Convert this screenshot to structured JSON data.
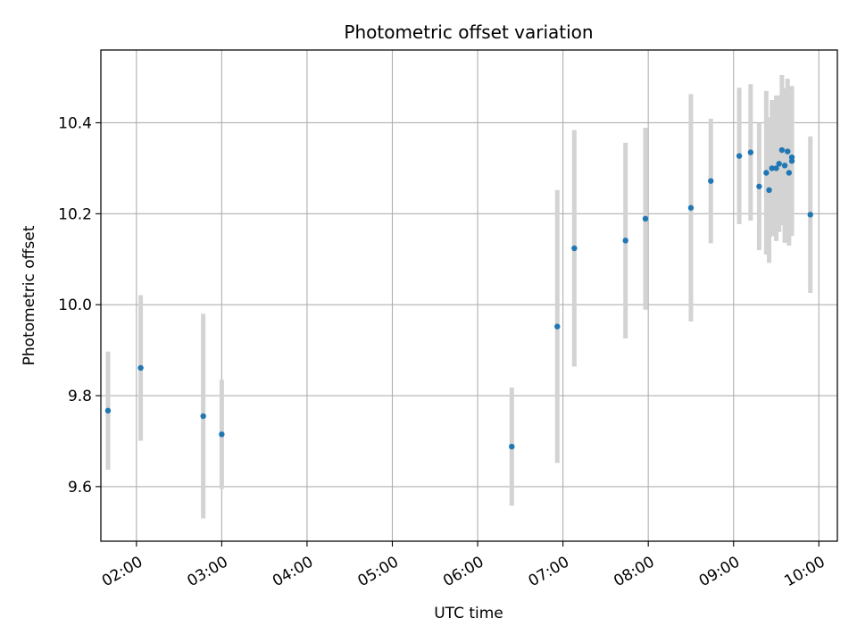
{
  "chart_data": {
    "type": "scatter",
    "title": "Photometric offset variation",
    "xlabel": "UTC time",
    "ylabel": "Photometric offset",
    "xlim": [
      "01:35",
      "10:13"
    ],
    "ylim": [
      9.48,
      10.56
    ],
    "grid": true,
    "x_ticks": [
      "02:00",
      "03:00",
      "04:00",
      "05:00",
      "06:00",
      "07:00",
      "08:00",
      "09:00",
      "10:00"
    ],
    "y_ticks": [
      "9.6",
      "9.8",
      "10.0",
      "10.2",
      "10.4"
    ],
    "colors": {
      "point": "#1f77b4",
      "errorbar": "#d3d3d3",
      "grid": "#b0b0b0",
      "axes": "#000000"
    },
    "series": [
      {
        "points": [
          {
            "x": "01:40",
            "y": 9.767,
            "err": 0.13
          },
          {
            "x": "02:03",
            "y": 9.861,
            "err": 0.16
          },
          {
            "x": "02:47",
            "y": 9.755,
            "err": 0.225
          },
          {
            "x": "03:00",
            "y": 9.715,
            "err": 0.12
          },
          {
            "x": "06:24",
            "y": 9.688,
            "err": 0.13
          },
          {
            "x": "06:56",
            "y": 9.952,
            "err": 0.3
          },
          {
            "x": "07:08",
            "y": 10.124,
            "err": 0.26
          },
          {
            "x": "07:44",
            "y": 10.141,
            "err": 0.215
          },
          {
            "x": "07:58",
            "y": 10.189,
            "err": 0.2
          },
          {
            "x": "08:30",
            "y": 10.213,
            "err": 0.25
          },
          {
            "x": "08:44",
            "y": 10.272,
            "err": 0.137
          },
          {
            "x": "09:04",
            "y": 10.327,
            "err": 0.15
          },
          {
            "x": "09:12",
            "y": 10.335,
            "err": 0.15
          },
          {
            "x": "09:18",
            "y": 10.26,
            "err": 0.14
          },
          {
            "x": "09:23",
            "y": 10.29,
            "err": 0.18
          },
          {
            "x": "09:25",
            "y": 10.252,
            "err": 0.16
          },
          {
            "x": "09:27",
            "y": 10.3,
            "err": 0.15
          },
          {
            "x": "09:30",
            "y": 10.3,
            "err": 0.16
          },
          {
            "x": "09:32",
            "y": 10.31,
            "err": 0.15
          },
          {
            "x": "09:34",
            "y": 10.34,
            "err": 0.165
          },
          {
            "x": "09:36",
            "y": 10.306,
            "err": 0.17
          },
          {
            "x": "09:38",
            "y": 10.337,
            "err": 0.16
          },
          {
            "x": "09:39",
            "y": 10.29,
            "err": 0.16
          },
          {
            "x": "09:41",
            "y": 10.316,
            "err": 0.165
          },
          {
            "x": "09:41",
            "y": 10.324,
            "err": 0.155
          },
          {
            "x": "09:54",
            "y": 10.198,
            "err": 0.172
          }
        ]
      }
    ]
  }
}
